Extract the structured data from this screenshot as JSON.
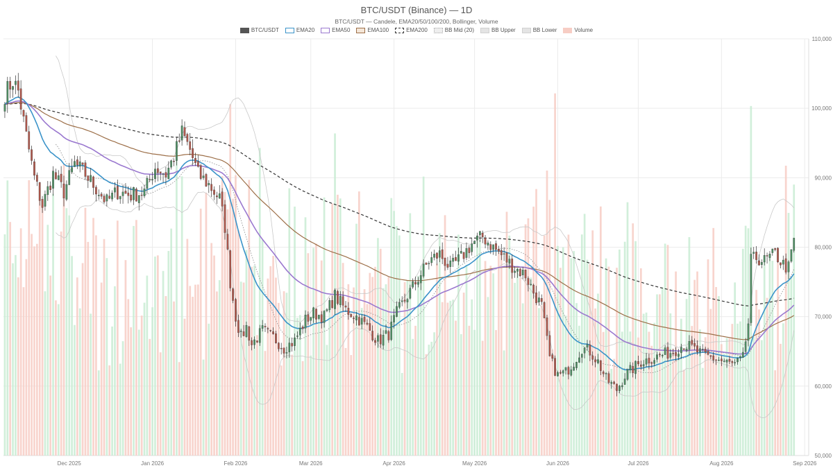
{
  "chart_data": {
    "type": "candlestick",
    "title": "BTC/USDT (Binance) — 1D",
    "subtitle": "BTC/USDT — Candele, EMA20/50/100/200, Bollinger, Volume",
    "legend": [
      {
        "name": "BTC/USDT",
        "style": "box",
        "fill": "#555555",
        "stroke": "#555555"
      },
      {
        "name": "EMA20",
        "style": "box",
        "fill": "#ffffff",
        "stroke": "#3a93c9"
      },
      {
        "name": "EMA50",
        "style": "box",
        "fill": "#ffffff",
        "stroke": "#9a78cf"
      },
      {
        "name": "EMA100",
        "style": "box",
        "fill": "#f4e6d8",
        "stroke": "#9c6e47"
      },
      {
        "name": "EMA200",
        "style": "dashed",
        "fill": "#ffffff",
        "stroke": "#333333"
      },
      {
        "name": "BB Mid (20)",
        "style": "dotted",
        "fill": "#eeeeee",
        "stroke": "#aaaaaa"
      },
      {
        "name": "BB Upper",
        "style": "box",
        "fill": "#e4e4e4",
        "stroke": "#d0d0d0"
      },
      {
        "name": "BB Lower",
        "style": "box",
        "fill": "#e4e4e4",
        "stroke": "#d0d0d0"
      },
      {
        "name": "Volume",
        "style": "box",
        "fill": "#f7cdc4",
        "stroke": "#f7cdc4"
      }
    ],
    "y_ticks": [
      "110,000",
      "100,000",
      "90,000",
      "80,000",
      "70,000",
      "60,000",
      "50,000"
    ],
    "y_tick_values": [
      110000,
      100000,
      90000,
      80000,
      70000,
      60000,
      50000
    ],
    "ylim": [
      50000,
      110000
    ],
    "x_ticks": [
      "Dec 2025",
      "Jan 2026",
      "Feb 2026",
      "Mar 2026",
      "Apr 2026",
      "May 2026",
      "Jun 2026",
      "Jul 2026",
      "Aug 2026",
      "Sep 2026"
    ],
    "x_tick_days": [
      24,
      55,
      86,
      114,
      145,
      175,
      206,
      236,
      267,
      298
    ],
    "x_range_days": [
      0,
      300
    ],
    "first_day": "2025-11-07",
    "grid": true,
    "y_axis_position": "right",
    "colors": {
      "up": "#4f8f64",
      "down": "#b0584c",
      "vol_up": "#c9ecd4",
      "vol_down": "#f7cdc4",
      "ema20": "#3a93c9",
      "ema50": "#9a78cf",
      "ema100": "#9c6e47",
      "ema200": "#333333",
      "bb": "#c8c8c8",
      "bb_mid": "#888888"
    },
    "close_anchors": [
      [
        0,
        102000
      ],
      [
        3,
        104000
      ],
      [
        5,
        102500
      ],
      [
        8,
        96000
      ],
      [
        11,
        90000
      ],
      [
        14,
        86000
      ],
      [
        18,
        90500
      ],
      [
        22,
        88000
      ],
      [
        26,
        92000
      ],
      [
        30,
        90500
      ],
      [
        34,
        88500
      ],
      [
        38,
        86500
      ],
      [
        42,
        88000
      ],
      [
        47,
        87500
      ],
      [
        52,
        88000
      ],
      [
        56,
        91500
      ],
      [
        60,
        90500
      ],
      [
        63,
        93000
      ],
      [
        66,
        96500
      ],
      [
        69,
        94000
      ],
      [
        72,
        90500
      ],
      [
        76,
        89000
      ],
      [
        80,
        87000
      ],
      [
        82,
        83000
      ],
      [
        84,
        75000
      ],
      [
        86,
        70000
      ],
      [
        88,
        67000
      ],
      [
        90,
        68500
      ],
      [
        92,
        66000
      ],
      [
        96,
        68000
      ],
      [
        100,
        67000
      ],
      [
        104,
        65500
      ],
      [
        108,
        66500
      ],
      [
        112,
        69500
      ],
      [
        115,
        70500
      ],
      [
        119,
        70000
      ],
      [
        123,
        73000
      ],
      [
        127,
        71000
      ],
      [
        131,
        70000
      ],
      [
        135,
        68500
      ],
      [
        139,
        66500
      ],
      [
        143,
        67500
      ],
      [
        146,
        70500
      ],
      [
        150,
        73000
      ],
      [
        154,
        75500
      ],
      [
        158,
        78000
      ],
      [
        162,
        79000
      ],
      [
        166,
        77000
      ],
      [
        170,
        78500
      ],
      [
        174,
        80500
      ],
      [
        178,
        81500
      ],
      [
        182,
        80000
      ],
      [
        186,
        78500
      ],
      [
        190,
        77000
      ],
      [
        194,
        76000
      ],
      [
        197,
        73500
      ],
      [
        200,
        71500
      ],
      [
        203,
        64000
      ],
      [
        206,
        61500
      ],
      [
        209,
        62000
      ],
      [
        212,
        63500
      ],
      [
        215,
        65500
      ],
      [
        218,
        65000
      ],
      [
        221,
        63500
      ],
      [
        224,
        61000
      ],
      [
        228,
        59500
      ],
      [
        231,
        61500
      ],
      [
        234,
        62500
      ],
      [
        237,
        63500
      ],
      [
        241,
        64000
      ],
      [
        245,
        64500
      ],
      [
        249,
        65000
      ],
      [
        253,
        66000
      ],
      [
        256,
        65500
      ],
      [
        260,
        64500
      ],
      [
        264,
        64000
      ],
      [
        268,
        63500
      ],
      [
        272,
        63000
      ],
      [
        275,
        64000
      ],
      [
        277,
        69000
      ],
      [
        278,
        78000
      ],
      [
        280,
        78500
      ],
      [
        283,
        78000
      ],
      [
        287,
        79000
      ],
      [
        290,
        77500
      ],
      [
        292,
        77000
      ],
      [
        294,
        81000
      ]
    ],
    "volume_range": [
      2000,
      40000
    ]
  }
}
